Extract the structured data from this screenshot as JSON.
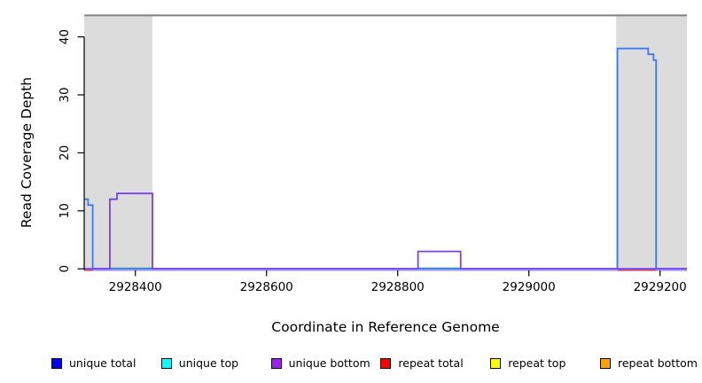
{
  "chart_data": {
    "type": "line",
    "subtype": "step-coverage",
    "title": "",
    "xlabel": "Coordinate in Reference Genome",
    "ylabel": "Read Coverage Depth",
    "x_ticks": [
      2928400,
      2928600,
      2928800,
      2929000,
      2929200
    ],
    "y_ticks": [
      0,
      10,
      20,
      30,
      40
    ],
    "xlim": [
      2928322,
      2929241
    ],
    "ylim": [
      0,
      43.8
    ],
    "grid": false,
    "legend_position": "bottom",
    "repeat_region_color": "#DCDCDC",
    "repeat_regions": [
      [
        2928322,
        2928426
      ],
      [
        2929133,
        2929241
      ]
    ],
    "boundary_line": {
      "depth": 43.7,
      "color": "#808080"
    },
    "baseline_shadow_color": "#B7AEF4",
    "series": [
      {
        "name": "unique total",
        "color": "#3D7BF0",
        "points": [
          [
            2928322,
            12
          ],
          [
            2928328,
            12
          ],
          [
            2928328,
            11
          ],
          [
            2928335,
            11
          ],
          [
            2928335,
            0
          ],
          [
            2929135,
            0
          ],
          [
            2929135,
            38
          ],
          [
            2929182,
            38
          ],
          [
            2929182,
            37
          ],
          [
            2929190,
            37
          ],
          [
            2929190,
            36
          ],
          [
            2929194,
            36
          ],
          [
            2929194,
            0
          ],
          [
            2929241,
            0
          ]
        ]
      },
      {
        "name": "unique bottom",
        "color": "#7742EC",
        "points": [
          [
            2928322,
            0
          ],
          [
            2928361,
            0
          ],
          [
            2928361,
            12
          ],
          [
            2928372,
            12
          ],
          [
            2928372,
            13
          ],
          [
            2928426,
            13
          ],
          [
            2928426,
            0
          ],
          [
            2928831,
            0
          ],
          [
            2928831,
            3
          ],
          [
            2928896,
            3
          ],
          [
            2928896,
            0
          ],
          [
            2929241,
            0
          ]
        ]
      }
    ],
    "zero_depth_segments": [
      {
        "color": "#E4504E",
        "range": [
          2928322,
          2928335
        ]
      },
      {
        "color": "#E4504E",
        "range": [
          2929135,
          2929194
        ]
      },
      {
        "color": "#74C97A",
        "range": [
          2928361,
          2928426
        ]
      },
      {
        "color": "#74C97A",
        "range": [
          2928831,
          2928896
        ]
      }
    ]
  },
  "legend": {
    "items": [
      {
        "label": "unique total",
        "color": "#0000FF"
      },
      {
        "label": "unique top",
        "color": "#00FFFF"
      },
      {
        "label": "unique bottom",
        "color": "#A020F0"
      },
      {
        "label": "repeat total",
        "color": "#FF0000"
      },
      {
        "label": "repeat top",
        "color": "#FFFF00"
      },
      {
        "label": "repeat bottom",
        "color": "#FFA500"
      }
    ]
  }
}
